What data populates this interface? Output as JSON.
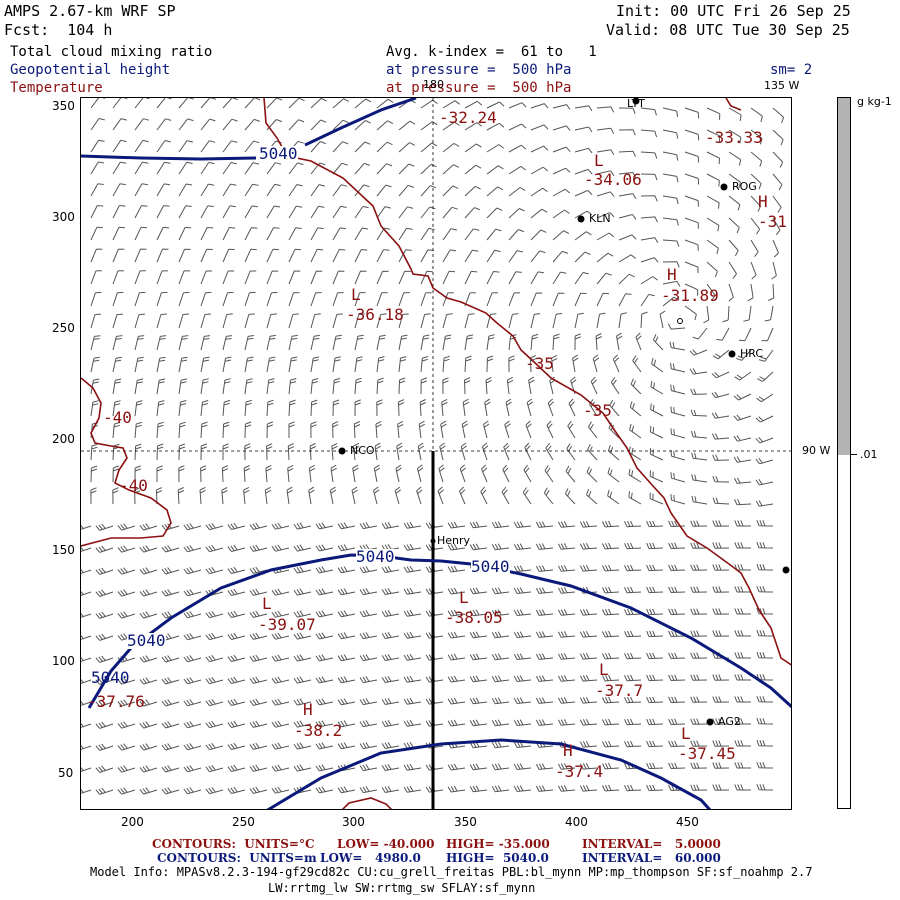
{
  "header": {
    "model": "AMPS 2.67-km WRF SP",
    "forecast": "Fcst:  104 h",
    "init": "Init: 00 UTC Fri 26 Sep 25",
    "valid": "Valid: 08 UTC Tue 30 Sep 25"
  },
  "fields": {
    "cloud": "Total cloud mixing ratio",
    "height": "Geopotential height",
    "temp": "Temperature"
  },
  "levels": {
    "avg": "Avg. k-index =  61 to   1",
    "pressure1": "at pressure =  500 hPa",
    "pressure2": "at pressure =  500 hPa",
    "sm": "sm= 2"
  },
  "map": {
    "gridlines": {
      "lon_top": "180",
      "lon_right_top": "135 W",
      "lat_right": "90 W"
    },
    "x_ticks": [
      "200",
      "250",
      "300",
      "350",
      "400",
      "450"
    ],
    "y_ticks": [
      "350",
      "300",
      "250",
      "200",
      "150",
      "100",
      "50"
    ],
    "stations": [
      {
        "name": "KLN"
      },
      {
        "name": "ROG"
      },
      {
        "name": "HRC"
      },
      {
        "name": "NCO"
      },
      {
        "name": "Henry"
      },
      {
        "name": "AG2"
      },
      {
        "name": "LTT"
      }
    ],
    "temp_labels": [
      {
        "text": "-32.24"
      },
      {
        "text": "-33.33"
      },
      {
        "text": "L"
      },
      {
        "text": "-34.06"
      },
      {
        "text": "H"
      },
      {
        "text": "-31"
      },
      {
        "text": "L"
      },
      {
        "text": "-36.18"
      },
      {
        "text": "H"
      },
      {
        "text": "-31.89"
      },
      {
        "text": "-35"
      },
      {
        "text": "-35"
      },
      {
        "text": "-40"
      },
      {
        "text": "-40"
      },
      {
        "text": "L"
      },
      {
        "text": "-39.07"
      },
      {
        "text": "L"
      },
      {
        "text": "-38.05"
      },
      {
        "text": "L"
      },
      {
        "text": "-37.7"
      },
      {
        "text": "-37.76"
      },
      {
        "text": "H"
      },
      {
        "text": "-38.2"
      },
      {
        "text": "L"
      },
      {
        "text": "-37.45"
      },
      {
        "text": "H"
      },
      {
        "text": "-37.4"
      }
    ],
    "height_labels": [
      "5040",
      "5040",
      "5040",
      "5040",
      "5040"
    ]
  },
  "colorbar": {
    "unit": "g kg-1",
    "value": ".01"
  },
  "footer": {
    "temp_row": {
      "label": "CONTOURS:  UNITS=°C",
      "low": "LOW= -40.000",
      "high": "HIGH= -35.000",
      "interval": "INTERVAL=   5.0000"
    },
    "height_row": {
      "label": "CONTOURS:  UNITS=m",
      "low": "LOW=   4980.0",
      "high": "HIGH=  5040.0",
      "interval": "INTERVAL=   60.000"
    },
    "model_info1": "Model Info: MPASv8.2.3-194-gf29cd82c CU:cu_grell_freitas PBL:bl_mynn MP:mp_thompson SF:sf_noahmp 2.7",
    "model_info2": "LW:rrtmg_lw SW:rrtmg_sw SFLAY:sf_mynn"
  },
  "colors": {
    "height": "#0b1a7a",
    "temp": "#8b1010",
    "colorbar_fill": "#b3b3b3"
  }
}
